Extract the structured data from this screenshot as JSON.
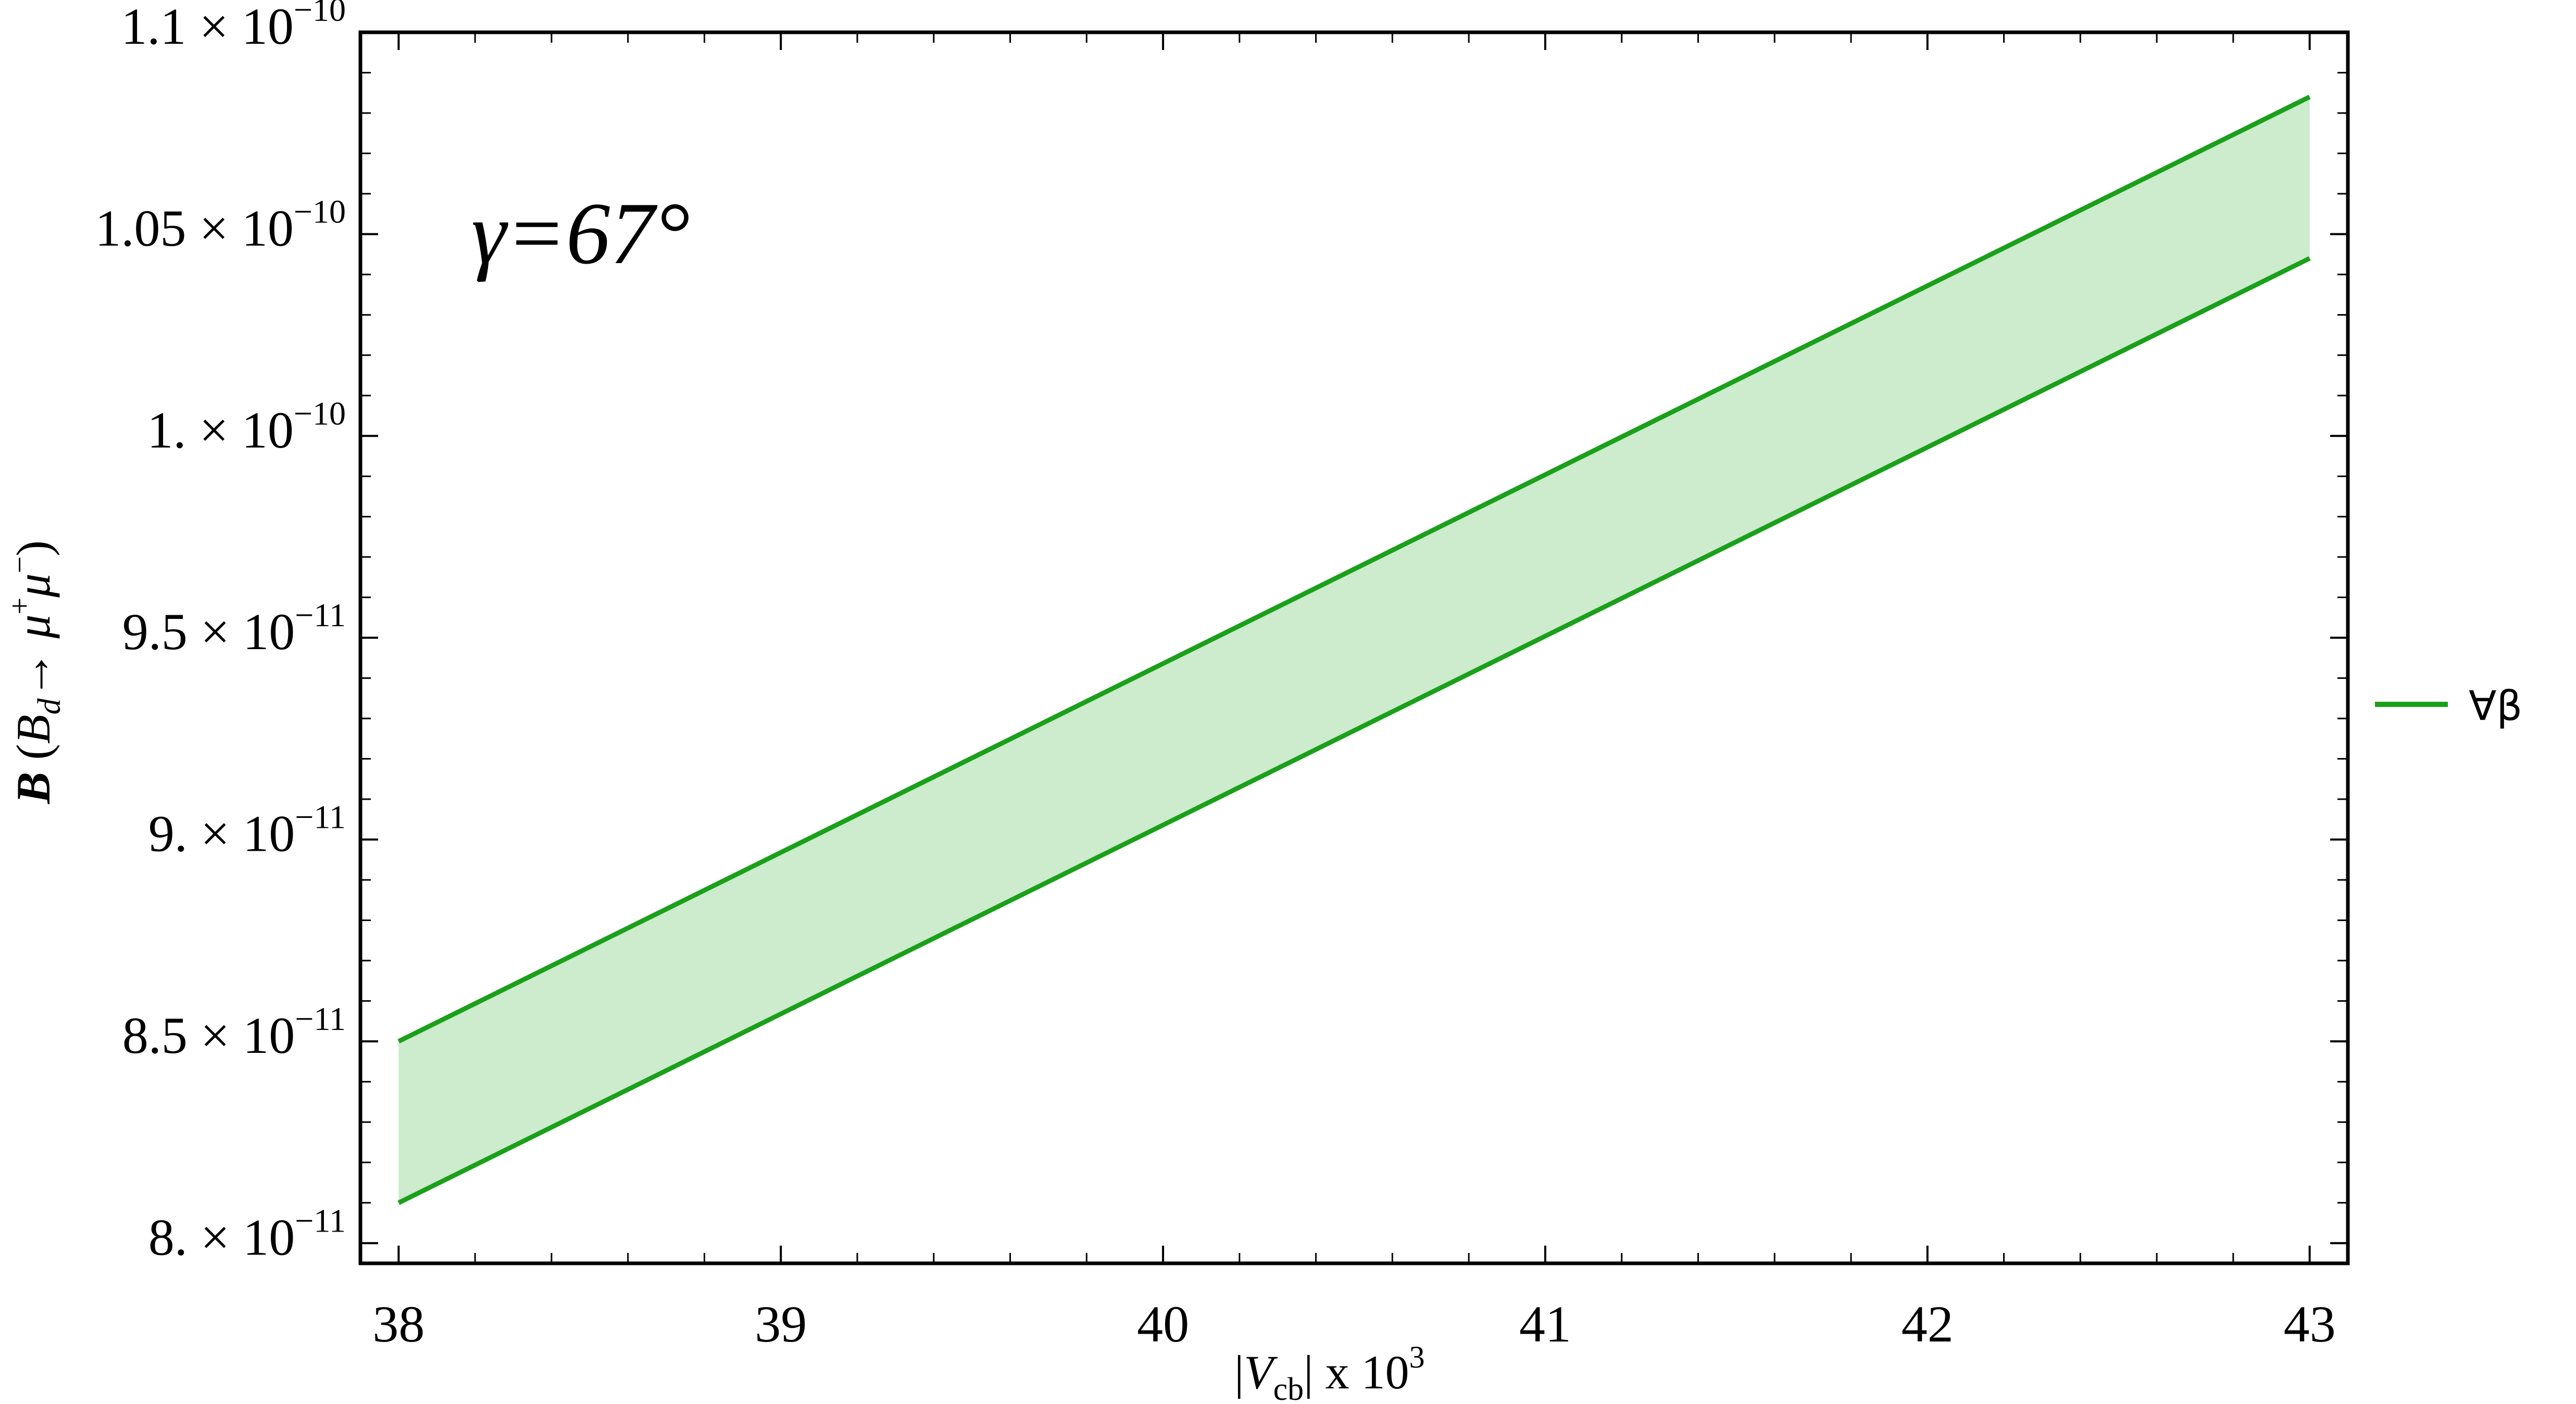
{
  "chart_data": {
    "type": "area",
    "title": "",
    "xlabel": "|Vcb| x 10^3",
    "ylabel": "B (Bd→ μ+μ−)",
    "xlim": [
      37.9,
      43.1
    ],
    "ylim": [
      7.95e-11,
      1.1e-10
    ],
    "x_ticks": [
      38,
      39,
      40,
      41,
      42,
      43
    ],
    "x_tick_labels": [
      "38",
      "39",
      "40",
      "41",
      "42",
      "43"
    ],
    "y_ticks": [
      {
        "value": 8e-11,
        "mantissa": "8.",
        "exponent": "−11"
      },
      {
        "value": 8.5e-11,
        "mantissa": "8.5",
        "exponent": "−11"
      },
      {
        "value": 9e-11,
        "mantissa": "9.",
        "exponent": "−11"
      },
      {
        "value": 9.5e-11,
        "mantissa": "9.5",
        "exponent": "−11"
      },
      {
        "value": 1e-10,
        "mantissa": "1.",
        "exponent": "−10"
      },
      {
        "value": 1.05e-10,
        "mantissa": "1.05",
        "exponent": "−10"
      },
      {
        "value": 1.1e-10,
        "mantissa": "1.1",
        "exponent": "−10"
      }
    ],
    "times_symbol": "×",
    "tick_base": "10",
    "series": [
      {
        "name": "∀β",
        "color": "#1aa01a",
        "fill_color": "#cdebcd",
        "x": [
          38,
          43
        ],
        "upper": [
          8.5e-11,
          1.084e-10
        ],
        "lower": [
          8.1e-11,
          1.044e-10
        ]
      }
    ],
    "annotation": "γ=67°",
    "legend_position": "right",
    "grid": false
  }
}
